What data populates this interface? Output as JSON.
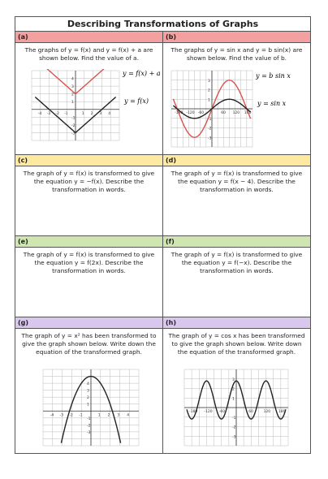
{
  "title": "Describing Transformations of Graphs",
  "colors": {
    "red": "#f4a0a0",
    "yellow": "#fde9a0",
    "green": "#cfe6b0",
    "purple": "#d9c7ee",
    "curve_red": "#d9534f",
    "curve_black": "#222222"
  },
  "a": {
    "label": "(a)",
    "text": "The graphs of y = f(x) and y = f(x) + a are shown below. Find the value of a.",
    "eq_top": "y = f(x) + a",
    "eq_bottom": "y = f(x)",
    "xticks": [
      "-4",
      "-3",
      "-2",
      "-1",
      "0",
      "1",
      "2",
      "3",
      "4"
    ],
    "yticks": [
      "4",
      "3",
      "2",
      "1",
      "-1",
      "-2",
      "-3"
    ]
  },
  "b": {
    "label": "(b)",
    "text": "The graphs of y = sin x and y = b sin(x) are shown below. Find the value of b.",
    "eq_top": "y = b sin x",
    "eq_bottom": "y = sin x",
    "xticks": [
      "-180",
      "-120",
      "-60",
      "60",
      "120",
      "180"
    ],
    "yticks": [
      "3",
      "2",
      "1",
      "-1",
      "-2",
      "-3"
    ]
  },
  "c": {
    "label": "(c)",
    "text": "The graph of y = f(x) is transformed to give the equation y = −f(x). Describe the transformation in words."
  },
  "d": {
    "label": "(d)",
    "text": "The graph of y = f(x) is transformed to give the equation y = f(x − 4). Describe the transformation in words."
  },
  "e": {
    "label": "(e)",
    "text": "The graph of y = f(x) is transformed to give the equation y = f(2x). Describe the transformation in words."
  },
  "f": {
    "label": "(f)",
    "text": "The graph of y = f(x) is transformed to give the equation y = f(−x). Describe the transformation in words."
  },
  "g": {
    "label": "(g)",
    "text": "The graph of y = x² has been transformed to give the graph shown below. Write down the equation of the transformed graph.",
    "xticks": [
      "-4",
      "-3",
      "-2",
      "-1",
      "0",
      "1",
      "2",
      "3",
      "4"
    ],
    "yticks": [
      "4",
      "3",
      "2",
      "1",
      "-1",
      "-2",
      "-3"
    ]
  },
  "h": {
    "label": "(h)",
    "text": "The graph of y = cos x has been transformed to give the graph shown below. Write down the equation of the transformed graph.",
    "xticks": [
      "-180",
      "-120",
      "-60",
      "0",
      "60",
      "120",
      "180"
    ],
    "yticks": [
      "3",
      "2",
      "1",
      "-1",
      "-2",
      "-3"
    ]
  }
}
